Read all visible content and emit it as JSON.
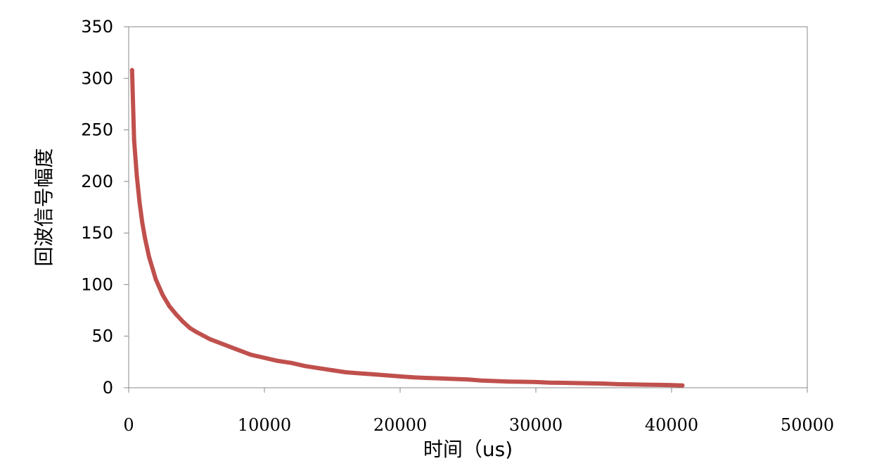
{
  "chart_data": {
    "type": "line",
    "title": "",
    "xlabel": "时间（us)",
    "ylabel": "回波信号幅度",
    "xlim": [
      0,
      50000
    ],
    "ylim": [
      0,
      350
    ],
    "xticks": [
      0,
      10000,
      20000,
      30000,
      40000,
      50000
    ],
    "yticks": [
      0,
      50,
      100,
      150,
      200,
      250,
      300,
      350
    ],
    "grid": false,
    "legend": "none",
    "series": [
      {
        "color": "#c0504d",
        "x": [
          250,
          400,
          600,
          800,
          1000,
          1200,
          1500,
          2000,
          2500,
          3000,
          3500,
          4000,
          4500,
          5000,
          6000,
          7000,
          8000,
          9000,
          10000,
          11000,
          12000,
          13000,
          14000,
          15000,
          16000,
          17000,
          18000,
          19000,
          20000,
          21000,
          22000,
          23000,
          24000,
          25000,
          26000,
          27000,
          28000,
          29000,
          30000,
          31000,
          32000,
          33000,
          34000,
          35000,
          36000,
          37000,
          38000,
          39000,
          40000,
          40800
        ],
        "y": [
          308,
          240,
          205,
          180,
          160,
          145,
          127,
          105,
          90,
          79,
          71,
          64,
          58,
          54,
          47,
          42,
          37,
          32,
          29,
          26,
          24,
          21,
          19,
          17,
          15,
          14,
          13,
          12,
          11,
          10,
          9.5,
          9,
          8.5,
          8,
          7,
          6.5,
          6,
          5.8,
          5.5,
          5,
          4.8,
          4.5,
          4.2,
          4,
          3.5,
          3.3,
          3,
          2.8,
          2.5,
          2.2
        ]
      }
    ]
  }
}
